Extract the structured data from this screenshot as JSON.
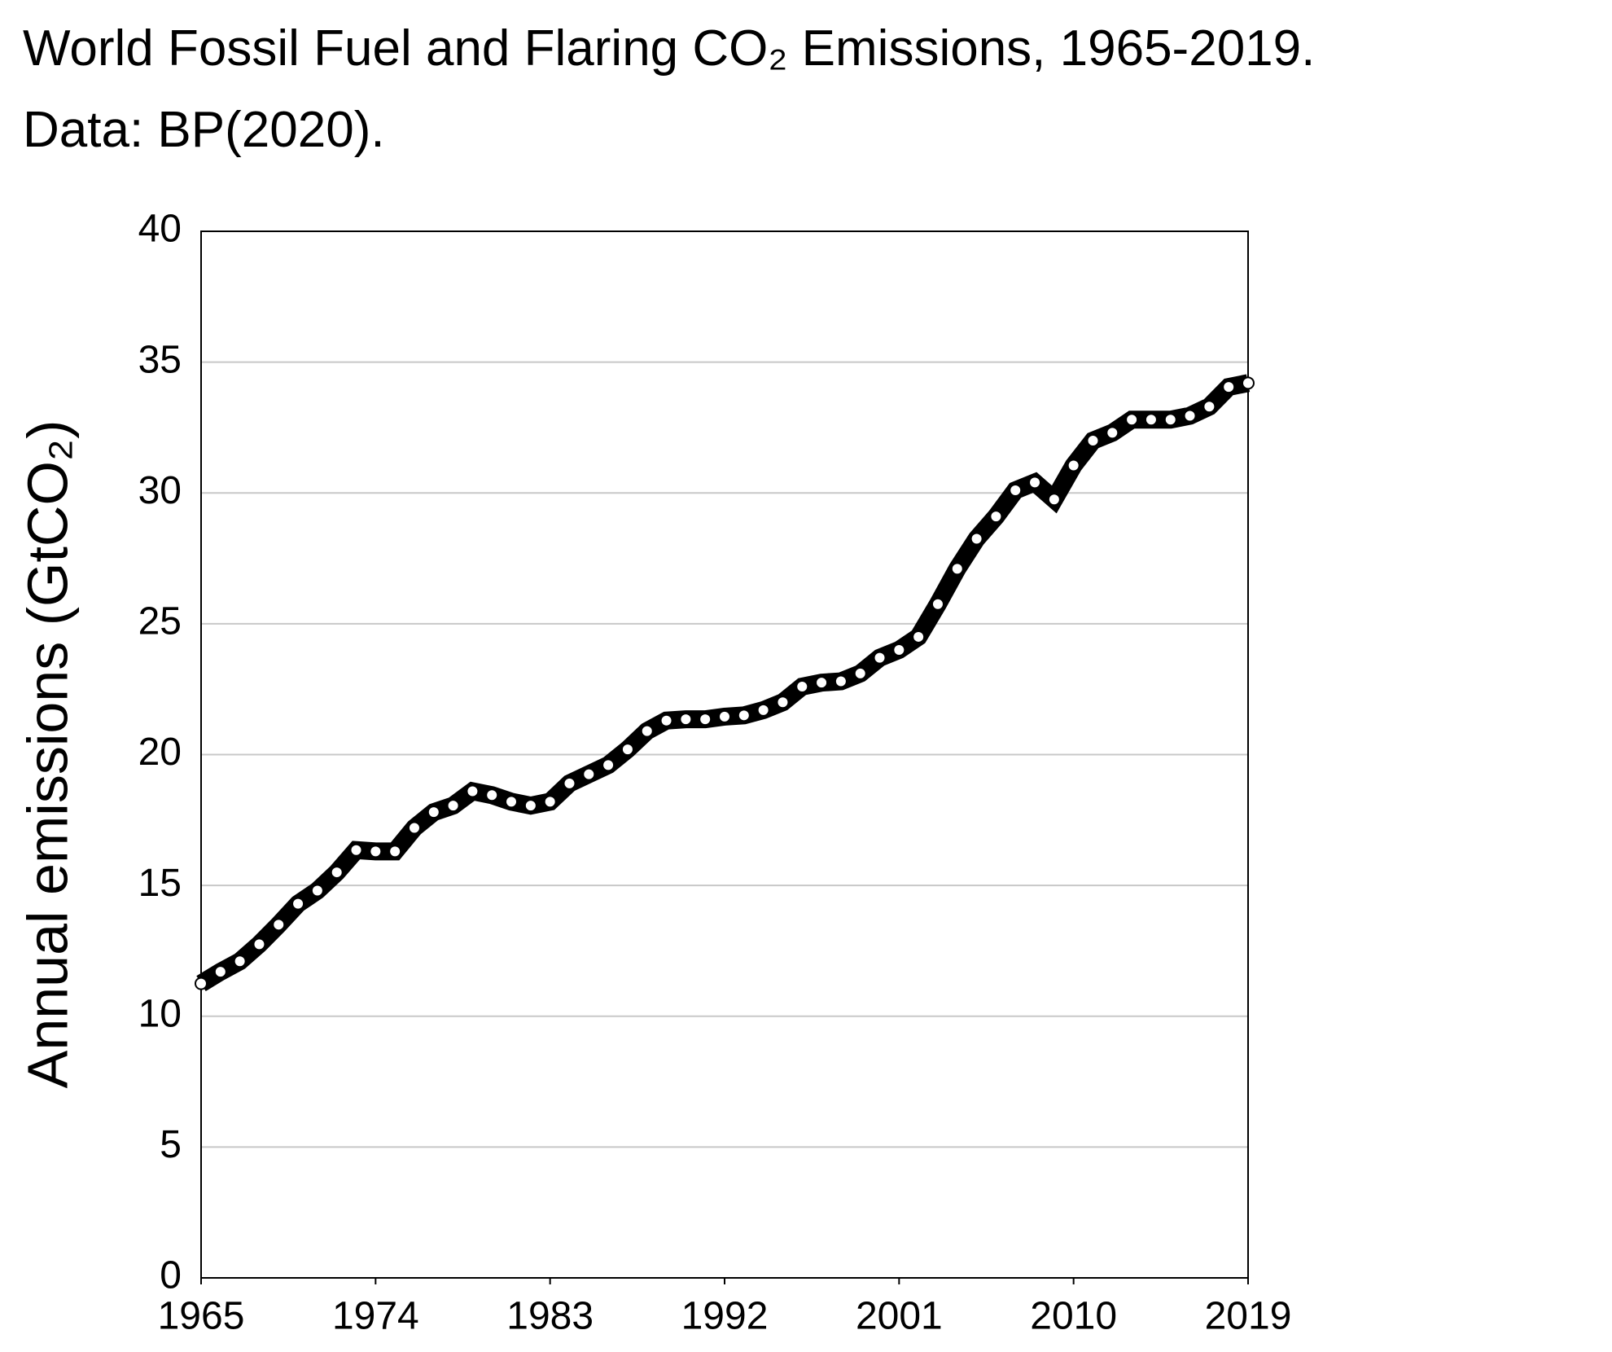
{
  "chart_data": {
    "type": "line",
    "title": [
      "World Fossil Fuel and Flaring CO₂ Emissions, 1965-2019.",
      "Data: BP(2020)."
    ],
    "y_label": "Annual emissions (GtCO₂)",
    "x": [
      1965,
      1966,
      1967,
      1968,
      1969,
      1970,
      1971,
      1972,
      1973,
      1974,
      1975,
      1976,
      1977,
      1978,
      1979,
      1980,
      1981,
      1982,
      1983,
      1984,
      1985,
      1986,
      1987,
      1988,
      1989,
      1990,
      1991,
      1992,
      1993,
      1994,
      1995,
      1996,
      1997,
      1998,
      1999,
      2000,
      2001,
      2002,
      2003,
      2004,
      2005,
      2006,
      2007,
      2008,
      2009,
      2010,
      2011,
      2012,
      2013,
      2014,
      2015,
      2016,
      2017,
      2018,
      2019
    ],
    "values": [
      11.25,
      11.7,
      12.1,
      12.75,
      13.5,
      14.3,
      14.8,
      15.5,
      16.35,
      16.3,
      16.3,
      17.2,
      17.8,
      18.05,
      18.6,
      18.45,
      18.2,
      18.05,
      18.2,
      18.9,
      19.25,
      19.6,
      20.2,
      20.9,
      21.3,
      21.35,
      21.35,
      21.45,
      21.5,
      21.7,
      22.0,
      22.6,
      22.75,
      22.8,
      23.1,
      23.7,
      24.0,
      24.5,
      25.75,
      27.1,
      28.25,
      29.1,
      30.1,
      30.4,
      29.75,
      31.05,
      32.0,
      32.3,
      32.8,
      32.8,
      32.8,
      32.95,
      33.3,
      34.05,
      34.2
    ],
    "color": "#000000",
    "marker_color": "#ffffff",
    "xlim": [
      1965,
      2019
    ],
    "xticks": [
      1965,
      1974,
      1983,
      1992,
      2001,
      2010,
      2019
    ],
    "ylim": [
      0,
      40
    ],
    "yticks": [
      0,
      5,
      10,
      15,
      20,
      25,
      30,
      35,
      40
    ],
    "grid": true
  }
}
